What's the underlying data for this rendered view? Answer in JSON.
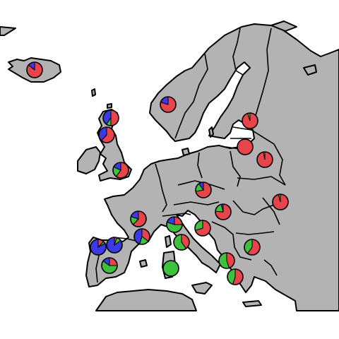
{
  "map": {
    "colors": {
      "land": "#b3b3b3",
      "sea": "#ffffff",
      "outline": "#000000",
      "red": "#e8444c",
      "green": "#3cc23c",
      "blue": "#3a3ae6"
    },
    "sites": [
      {
        "id": "iceland",
        "fractions": {
          "red": 0.86,
          "green": 0.0,
          "blue": 0.14
        }
      },
      {
        "id": "norway",
        "fractions": {
          "red": 0.8,
          "green": 0.0,
          "blue": 0.2
        }
      },
      {
        "id": "scotland-north",
        "fractions": {
          "red": 0.5,
          "green": 0.1,
          "blue": 0.4
        }
      },
      {
        "id": "scotland-south",
        "fractions": {
          "red": 0.62,
          "green": 0.0,
          "blue": 0.38
        }
      },
      {
        "id": "england",
        "fractions": {
          "red": 0.6,
          "green": 0.22,
          "blue": 0.18
        }
      },
      {
        "id": "finland",
        "fractions": {
          "red": 0.95,
          "green": 0.05,
          "blue": 0.0
        }
      },
      {
        "id": "estonia",
        "fractions": {
          "red": 1.0,
          "green": 0.0,
          "blue": 0.0
        }
      },
      {
        "id": "belarus",
        "fractions": {
          "red": 0.97,
          "green": 0.03,
          "blue": 0.0
        }
      },
      {
        "id": "poland-south",
        "fractions": {
          "red": 0.72,
          "green": 0.18,
          "blue": 0.1
        }
      },
      {
        "id": "ukraine",
        "fractions": {
          "red": 0.96,
          "green": 0.04,
          "blue": 0.0
        }
      },
      {
        "id": "hungary",
        "fractions": {
          "red": 0.76,
          "green": 0.2,
          "blue": 0.04
        }
      },
      {
        "id": "france-west",
        "fractions": {
          "red": 0.62,
          "green": 0.18,
          "blue": 0.2
        }
      },
      {
        "id": "france-south",
        "fractions": {
          "red": 0.35,
          "green": 0.2,
          "blue": 0.45
        }
      },
      {
        "id": "alps",
        "fractions": {
          "red": 0.25,
          "green": 0.55,
          "blue": 0.2
        }
      },
      {
        "id": "croatia",
        "fractions": {
          "red": 0.7,
          "green": 0.3,
          "blue": 0.0
        }
      },
      {
        "id": "italy",
        "fractions": {
          "red": 0.4,
          "green": 0.6,
          "blue": 0.0
        }
      },
      {
        "id": "bulgaria",
        "fractions": {
          "red": 0.6,
          "green": 0.4,
          "blue": 0.0
        }
      },
      {
        "id": "portugal",
        "fractions": {
          "red": 0.12,
          "green": 0.05,
          "blue": 0.83
        }
      },
      {
        "id": "spain-north",
        "fractions": {
          "red": 0.05,
          "green": 0.1,
          "blue": 0.85
        }
      },
      {
        "id": "spain-south",
        "fractions": {
          "red": 0.25,
          "green": 0.6,
          "blue": 0.15
        }
      },
      {
        "id": "sardinia",
        "fractions": {
          "red": 0.0,
          "green": 1.0,
          "blue": 0.0
        }
      },
      {
        "id": "greece-north",
        "fractions": {
          "red": 0.45,
          "green": 0.55,
          "blue": 0.0
        }
      },
      {
        "id": "greece-south",
        "fractions": {
          "red": 0.55,
          "green": 0.45,
          "blue": 0.0
        }
      }
    ]
  }
}
